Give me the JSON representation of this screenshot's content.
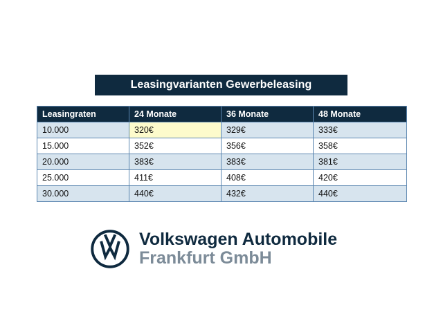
{
  "title": "Leasingvarianten Gewerbeleasing",
  "table": {
    "headers": [
      "Leasingraten",
      "24 Monate",
      "36 Monate",
      "48 Monate"
    ],
    "rows": [
      [
        "10.000",
        "320€",
        "329€",
        "333€"
      ],
      [
        "15.000",
        "352€",
        "356€",
        "358€"
      ],
      [
        "20.000",
        "383€",
        "383€",
        "381€"
      ],
      [
        "25.000",
        "411€",
        "408€",
        "420€"
      ],
      [
        "30.000",
        "440€",
        "432€",
        "440€"
      ]
    ]
  },
  "brand": {
    "logo_icon": "vw-logo-icon",
    "line1": "Volkswagen Automobile",
    "line2": "Frankfurt GmbH",
    "primary_color": "#0f2a3f",
    "secondary_color": "#7c8b98"
  },
  "colors": {
    "header_bg": "#0f2a3f",
    "alt_row_bg": "#d7e4ee",
    "highlight_bg": "#fdfbcc",
    "border": "#5b86b0"
  }
}
